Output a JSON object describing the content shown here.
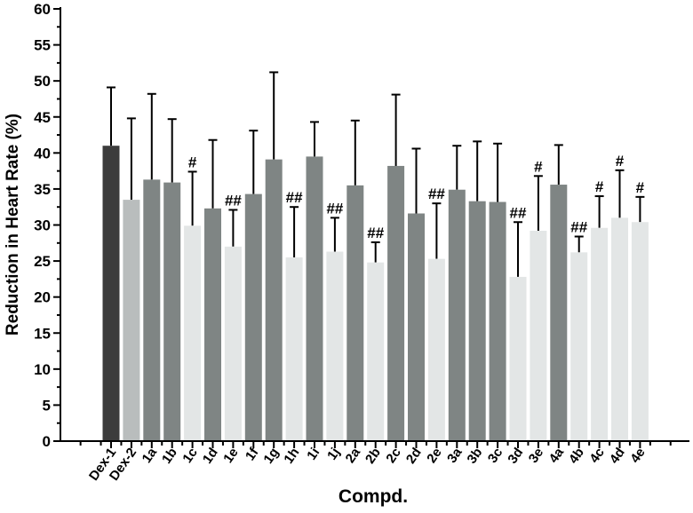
{
  "chart_data": {
    "type": "bar",
    "y_label": "Reduction in Heart Rate (%)",
    "x_label": "Compd.",
    "categories": [
      "Dex-1",
      "Dex-2",
      "1a",
      "1b",
      "1c",
      "1d",
      "1e",
      "1f",
      "1g",
      "1h",
      "1i",
      "1j",
      "2a",
      "2b",
      "2c",
      "2d",
      "2e",
      "3a",
      "3b",
      "3c",
      "3d",
      "3e",
      "4a",
      "4b",
      "4c",
      "4d",
      "4e"
    ],
    "values": [
      41.0,
      33.5,
      36.3,
      35.9,
      29.9,
      32.3,
      27.0,
      34.3,
      39.1,
      25.5,
      39.5,
      26.3,
      35.5,
      24.8,
      38.2,
      31.6,
      25.3,
      34.9,
      33.3,
      33.2,
      22.8,
      29.2,
      35.6,
      26.2,
      29.6,
      31.0,
      30.4
    ],
    "errors": [
      8.1,
      11.3,
      11.9,
      8.8,
      7.5,
      9.5,
      5.1,
      8.8,
      12.1,
      7.0,
      4.8,
      4.7,
      9.0,
      2.8,
      9.9,
      9.0,
      7.7,
      6.1,
      8.3,
      8.1,
      7.6,
      7.6,
      5.5,
      2.2,
      4.4,
      6.6,
      3.5
    ],
    "colors": [
      "#3c3c3c",
      "#b9bdbd",
      "#7f8584",
      "#7f8584",
      "#e3e6e6",
      "#7f8584",
      "#e3e6e6",
      "#7f8584",
      "#7f8584",
      "#e3e6e6",
      "#7f8584",
      "#e3e6e6",
      "#7f8584",
      "#e3e6e6",
      "#7f8584",
      "#7f8584",
      "#e3e6e6",
      "#7f8584",
      "#7f8584",
      "#7f8584",
      "#e3e6e6",
      "#e3e6e6",
      "#7f8584",
      "#e3e6e6",
      "#e3e6e6",
      "#e3e6e6",
      "#e3e6e6"
    ],
    "annotations": [
      null,
      null,
      null,
      null,
      "#",
      null,
      "##",
      null,
      null,
      "##",
      null,
      "##",
      null,
      "##",
      null,
      null,
      "##",
      null,
      null,
      null,
      "##",
      "#",
      null,
      "##",
      "#",
      "#",
      "#"
    ],
    "ylim": [
      0,
      60
    ],
    "yticks": [
      0,
      5,
      10,
      15,
      20,
      25,
      30,
      35,
      40,
      45,
      50,
      55,
      60
    ]
  }
}
